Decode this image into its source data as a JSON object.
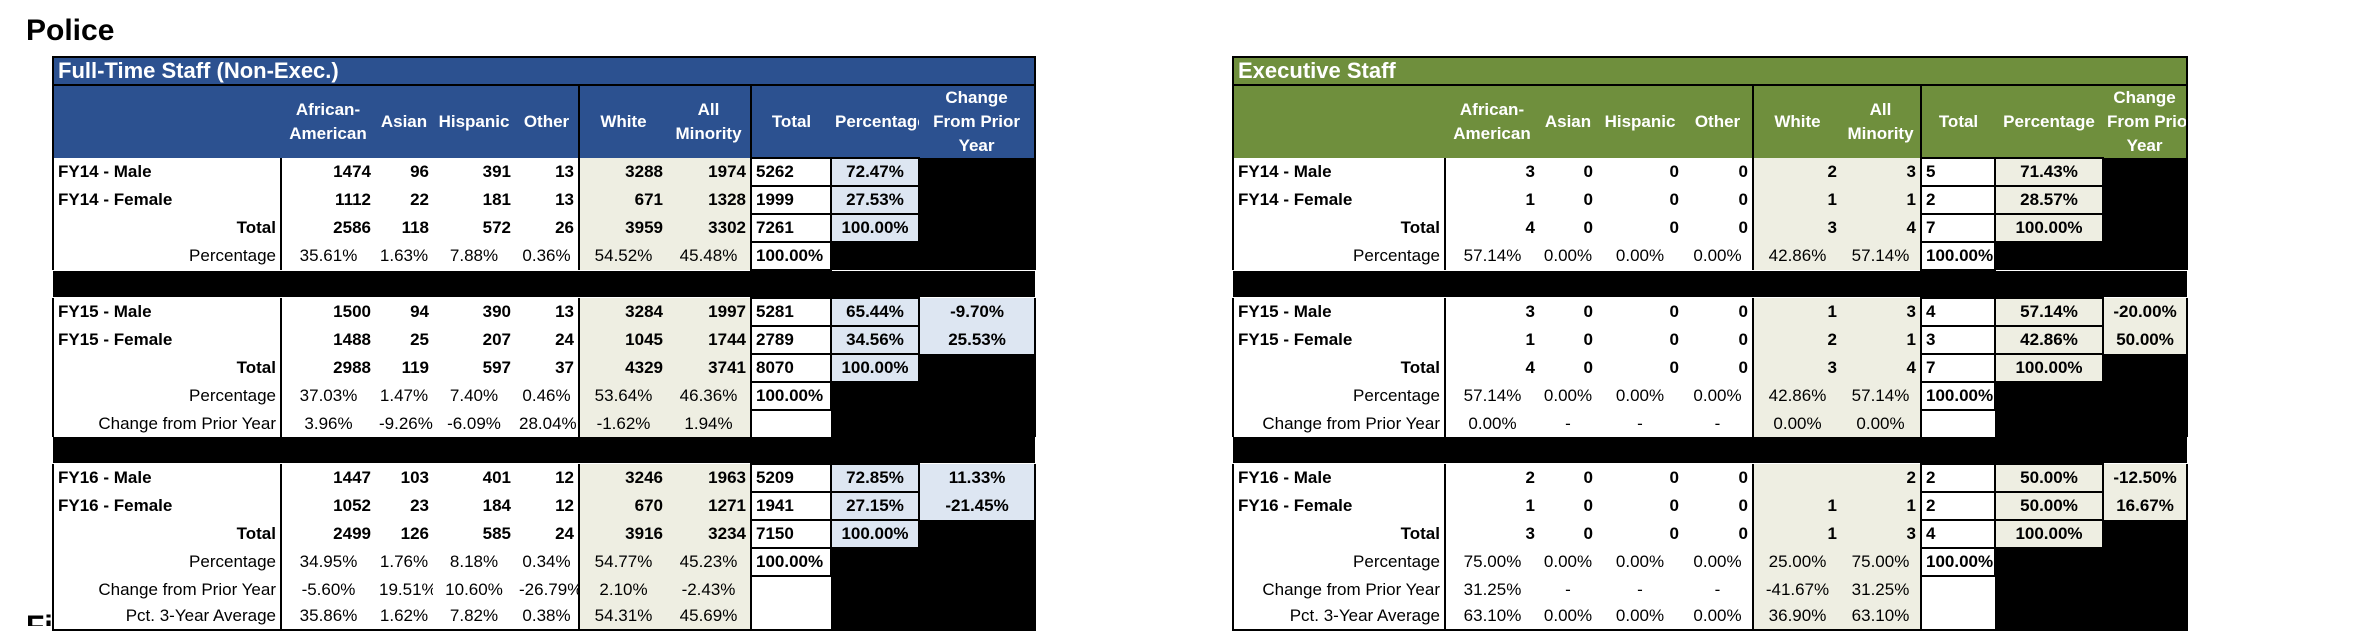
{
  "page_title": "Police",
  "next_section_title": "Fi",
  "columns": [
    "African-\nAmerican",
    "Asian",
    "Hispanic",
    "Other",
    "White",
    "All\nMinority",
    "Total",
    "Percentage",
    "Change\nFrom Prior\nYear"
  ],
  "tables": [
    {
      "title": "Full-Time Staff (Non-Exec.)",
      "groups": [
        {
          "rows": [
            {
              "label": "FY14 - Male",
              "v": [
                "1474",
                "96",
                "391",
                "13",
                "3288",
                "1974",
                "5262",
                "72.47%",
                ""
              ]
            },
            {
              "label": "FY14 - Female",
              "v": [
                "1112",
                "22",
                "181",
                "13",
                "671",
                "1328",
                "1999",
                "27.53%",
                ""
              ]
            },
            {
              "label": "Total",
              "v": [
                "2586",
                "118",
                "572",
                "26",
                "3959",
                "3302",
                "7261",
                "100.00%",
                ""
              ]
            },
            {
              "label": "Percentage",
              "v": [
                "35.61%",
                "1.63%",
                "7.88%",
                "0.36%",
                "54.52%",
                "45.48%",
                "100.00%",
                "",
                ""
              ]
            }
          ]
        },
        {
          "rows": [
            {
              "label": "FY15 - Male",
              "v": [
                "1500",
                "94",
                "390",
                "13",
                "3284",
                "1997",
                "5281",
                "65.44%",
                "-9.70%"
              ]
            },
            {
              "label": "FY15 - Female",
              "v": [
                "1488",
                "25",
                "207",
                "24",
                "1045",
                "1744",
                "2789",
                "34.56%",
                "25.53%"
              ]
            },
            {
              "label": "Total",
              "v": [
                "2988",
                "119",
                "597",
                "37",
                "4329",
                "3741",
                "8070",
                "100.00%",
                ""
              ]
            },
            {
              "label": "Percentage",
              "v": [
                "37.03%",
                "1.47%",
                "7.40%",
                "0.46%",
                "53.64%",
                "46.36%",
                "100.00%",
                "",
                ""
              ]
            },
            {
              "label": "Change from Prior Year",
              "v": [
                "3.96%",
                "-9.26%",
                "-6.09%",
                "28.04%",
                "-1.62%",
                "1.94%",
                "",
                "",
                ""
              ]
            }
          ]
        },
        {
          "rows": [
            {
              "label": "FY16 - Male",
              "v": [
                "1447",
                "103",
                "401",
                "12",
                "3246",
                "1963",
                "5209",
                "72.85%",
                "11.33%"
              ]
            },
            {
              "label": "FY16 - Female",
              "v": [
                "1052",
                "23",
                "184",
                "12",
                "670",
                "1271",
                "1941",
                "27.15%",
                "-21.45%"
              ]
            },
            {
              "label": "Total",
              "v": [
                "2499",
                "126",
                "585",
                "24",
                "3916",
                "3234",
                "7150",
                "100.00%",
                ""
              ]
            },
            {
              "label": "Percentage",
              "v": [
                "34.95%",
                "1.76%",
                "8.18%",
                "0.34%",
                "54.77%",
                "45.23%",
                "100.00%",
                "",
                ""
              ]
            },
            {
              "label": "Change from Prior Year",
              "v": [
                "-5.60%",
                "19.51%",
                "10.60%",
                "-26.79%",
                "2.10%",
                "-2.43%",
                "",
                "",
                ""
              ]
            },
            {
              "label": "Pct. 3-Year Average",
              "v": [
                "35.86%",
                "1.62%",
                "7.82%",
                "0.38%",
                "54.31%",
                "45.69%",
                "",
                "",
                ""
              ]
            }
          ]
        }
      ]
    },
    {
      "title": "Executive Staff",
      "groups": [
        {
          "rows": [
            {
              "label": "FY14 - Male",
              "v": [
                "3",
                "0",
                "0",
                "0",
                "2",
                "3",
                "5",
                "71.43%",
                ""
              ]
            },
            {
              "label": "FY14 - Female",
              "v": [
                "1",
                "0",
                "0",
                "0",
                "1",
                "1",
                "2",
                "28.57%",
                ""
              ]
            },
            {
              "label": "Total",
              "v": [
                "4",
                "0",
                "0",
                "0",
                "3",
                "4",
                "7",
                "100.00%",
                ""
              ]
            },
            {
              "label": "Percentage",
              "v": [
                "57.14%",
                "0.00%",
                "0.00%",
                "0.00%",
                "42.86%",
                "57.14%",
                "100.00%",
                "",
                ""
              ]
            }
          ]
        },
        {
          "rows": [
            {
              "label": "FY15 - Male",
              "v": [
                "3",
                "0",
                "0",
                "0",
                "1",
                "3",
                "4",
                "57.14%",
                "-20.00%"
              ]
            },
            {
              "label": "FY15 - Female",
              "v": [
                "1",
                "0",
                "0",
                "0",
                "2",
                "1",
                "3",
                "42.86%",
                "50.00%"
              ]
            },
            {
              "label": "Total",
              "v": [
                "4",
                "0",
                "0",
                "0",
                "3",
                "4",
                "7",
                "100.00%",
                ""
              ]
            },
            {
              "label": "Percentage",
              "v": [
                "57.14%",
                "0.00%",
                "0.00%",
                "0.00%",
                "42.86%",
                "57.14%",
                "100.00%",
                "",
                ""
              ]
            },
            {
              "label": "Change from Prior Year",
              "v": [
                "0.00%",
                "-",
                "-",
                "-",
                "0.00%",
                "0.00%",
                "",
                "",
                ""
              ]
            }
          ]
        },
        {
          "rows": [
            {
              "label": "FY16 - Male",
              "v": [
                "2",
                "0",
                "0",
                "0",
                "",
                "2",
                "2",
                "50.00%",
                "-12.50%"
              ]
            },
            {
              "label": "FY16 - Female",
              "v": [
                "1",
                "0",
                "0",
                "0",
                "1",
                "1",
                "2",
                "50.00%",
                "16.67%"
              ]
            },
            {
              "label": "Total",
              "v": [
                "3",
                "0",
                "0",
                "0",
                "1",
                "3",
                "4",
                "100.00%",
                ""
              ]
            },
            {
              "label": "Percentage",
              "v": [
                "75.00%",
                "0.00%",
                "0.00%",
                "0.00%",
                "25.00%",
                "75.00%",
                "100.00%",
                "",
                ""
              ]
            },
            {
              "label": "Change from Prior Year",
              "v": [
                "31.25%",
                "-",
                "-",
                "-",
                "-41.67%",
                "31.25%",
                "",
                "",
                ""
              ]
            },
            {
              "label": "Pct. 3-Year Average",
              "v": [
                "63.10%",
                "0.00%",
                "0.00%",
                "0.00%",
                "36.90%",
                "63.10%",
                "",
                "",
                ""
              ]
            }
          ]
        }
      ]
    }
  ]
}
